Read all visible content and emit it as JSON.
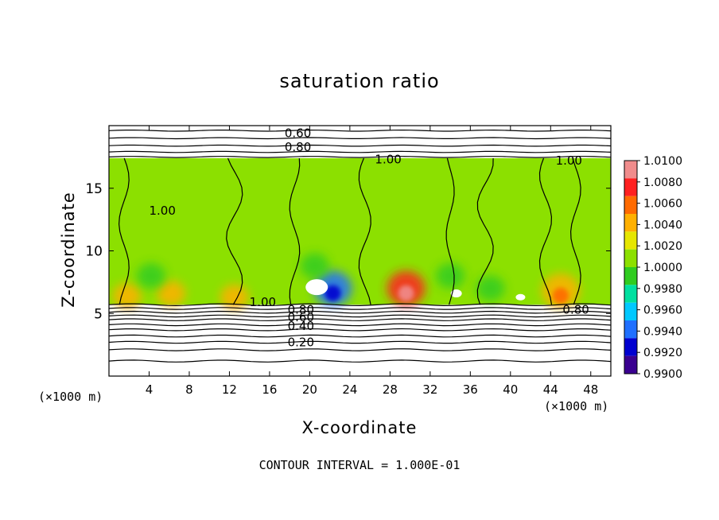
{
  "chart_data": {
    "type": "heatmap",
    "title": "saturation ratio",
    "xlabel": "X-coordinate",
    "ylabel": "Z-coordinate",
    "x_unit_label": "(×1000 m)",
    "xlim": [
      0,
      50
    ],
    "ylim": [
      0,
      20
    ],
    "x_ticks": [
      4,
      8,
      12,
      16,
      20,
      24,
      28,
      32,
      36,
      40,
      44,
      48
    ],
    "y_ticks": [
      5,
      10,
      15
    ],
    "footer": "CONTOUR INTERVAL = 1.000E-01",
    "colorbar": {
      "levels": [
        "1.0100",
        "1.0080",
        "1.0060",
        "1.0040",
        "1.0020",
        "1.0000",
        "0.9980",
        "0.9960",
        "0.9940",
        "0.9920",
        "0.9900"
      ],
      "colors": [
        "#f08c8c",
        "#ff2020",
        "#ff6a00",
        "#ffb000",
        "#e6e600",
        "#8ce000",
        "#30cc20",
        "#00e0a0",
        "#00c8ff",
        "#2070ff",
        "#0000d0",
        "#3a0090"
      ]
    },
    "shaded_band_z": [
      5.7,
      17.4
    ],
    "contour_labels": [
      {
        "text": "0.60",
        "x": 17.5,
        "z": 19.4
      },
      {
        "text": "0.80",
        "x": 17.5,
        "z": 18.3
      },
      {
        "text": "1.00",
        "x": 26.5,
        "z": 17.3
      },
      {
        "text": "1.00",
        "x": 44.5,
        "z": 17.2
      },
      {
        "text": "1.00",
        "x": 4.0,
        "z": 13.2
      },
      {
        "text": "1.00",
        "x": 14.0,
        "z": 5.9
      },
      {
        "text": "0.80",
        "x": 17.8,
        "z": 5.3
      },
      {
        "text": "0.60",
        "x": 17.8,
        "z": 4.7
      },
      {
        "text": "0.40",
        "x": 17.8,
        "z": 4.0
      },
      {
        "text": "0.20",
        "x": 17.8,
        "z": 2.7
      },
      {
        "text": "0.80",
        "x": 45.2,
        "z": 5.3
      }
    ],
    "hotspots": [
      {
        "x": 29.6,
        "z": 7.0,
        "value": 1.008
      },
      {
        "x": 45.0,
        "z": 6.8,
        "value": 1.004
      },
      {
        "x": 6.2,
        "z": 6.6,
        "value": 1.003
      },
      {
        "x": 1.8,
        "z": 6.4,
        "value": 1.003
      },
      {
        "x": 12.5,
        "z": 6.3,
        "value": 1.003
      },
      {
        "x": 22.3,
        "z": 7.0,
        "value": 0.9925
      },
      {
        "x": 20.5,
        "z": 8.8,
        "value": 0.9975
      },
      {
        "x": 4.2,
        "z": 8.0,
        "value": 0.9975
      },
      {
        "x": 38.0,
        "z": 7.0,
        "value": 0.9975
      },
      {
        "x": 34.0,
        "z": 8.0,
        "value": 0.998
      }
    ]
  }
}
